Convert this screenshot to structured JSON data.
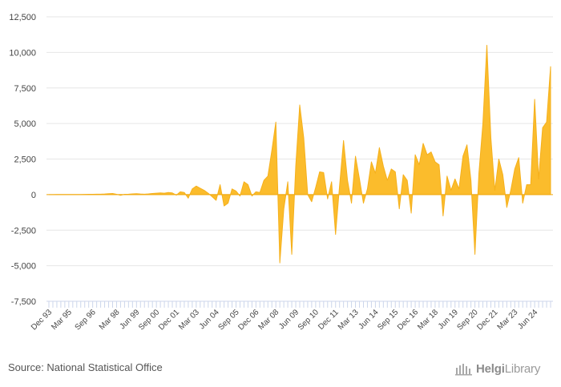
{
  "chart_data": {
    "type": "area",
    "title": "",
    "xlabel": "",
    "ylabel": "",
    "ylim": [
      -7500,
      12500
    ],
    "yticks": [
      12500,
      10000,
      7500,
      5000,
      2500,
      0,
      -2500,
      -5000,
      -7500
    ],
    "ytick_labels": [
      "12,500",
      "10,000",
      "7,500",
      "5,000",
      "2,500",
      "0",
      "-2,500",
      "-5,000",
      "-7,500"
    ],
    "xtick_labels": [
      "Dec 93",
      "Mar 95",
      "Sep 96",
      "Mar 98",
      "Jun 99",
      "Sep 00",
      "Dec 01",
      "Mar 03",
      "Jun 04",
      "Sep 05",
      "Dec 06",
      "Mar 08",
      "Jun 09",
      "Sep 10",
      "Dec 11",
      "Mar 13",
      "Jun 14",
      "Sep 15",
      "Dec 16",
      "Mar 18",
      "Jun 19",
      "Sep 20",
      "Dec 21",
      "Mar 23",
      "Jun 24"
    ],
    "xtick_index": [
      0,
      5,
      11,
      17,
      22,
      27,
      32,
      37,
      42,
      47,
      52,
      57,
      62,
      67,
      72,
      77,
      82,
      87,
      92,
      97,
      102,
      107,
      112,
      117,
      122
    ],
    "series": [
      {
        "name": "value",
        "color": "#fbbc2c",
        "values": [
          0,
          0,
          5,
          5,
          5,
          10,
          10,
          10,
          10,
          15,
          20,
          20,
          30,
          30,
          40,
          60,
          80,
          20,
          -50,
          20,
          30,
          50,
          60,
          40,
          30,
          50,
          80,
          100,
          120,
          100,
          150,
          120,
          -40,
          200,
          150,
          -250,
          400,
          600,
          450,
          300,
          100,
          -150,
          -400,
          700,
          -800,
          -600,
          400,
          250,
          -100,
          900,
          700,
          -100,
          200,
          150,
          1000,
          1300,
          3100,
          5100,
          -4800,
          -1000,
          900,
          -4200,
          2000,
          6300,
          4000,
          0,
          -500,
          500,
          1600,
          1550,
          -300,
          900,
          -2800,
          600,
          3800,
          1000,
          -600,
          2700,
          1100,
          -600,
          400,
          2300,
          1500,
          3300,
          2000,
          1000,
          1800,
          1600,
          -1000,
          1400,
          1000,
          -1300,
          2800,
          2100,
          3600,
          2800,
          3000,
          2300,
          2100,
          -1500,
          1300,
          300,
          1100,
          400,
          2700,
          3500,
          1000,
          -4200,
          1500,
          5000,
          10500,
          4000,
          300,
          2500,
          1400,
          -900,
          300,
          1800,
          2600,
          -600,
          700,
          700,
          6700,
          1100,
          4700,
          5100,
          9000
        ]
      }
    ],
    "zero_line": true,
    "grid": true
  },
  "footer": {
    "source": "Source: National Statistical Office",
    "logo_prefix": "Helgi",
    "logo_suffix": "Library"
  },
  "colors": {
    "area": "#fbbc2c",
    "grid": "#e6e6e6",
    "axis": "#ccd6eb",
    "text": "#444444"
  }
}
